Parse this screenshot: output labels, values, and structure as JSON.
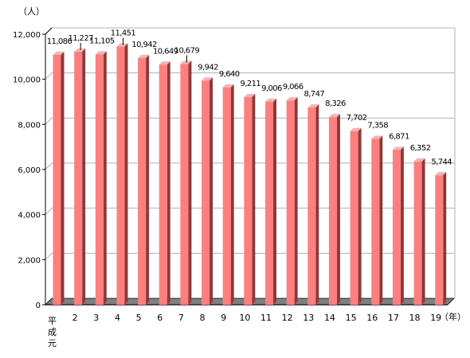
{
  "chart_data": {
    "type": "bar",
    "y_unit_label": "（人）",
    "x_unit_label": "（年）",
    "categories": [
      "平成元",
      "2",
      "3",
      "4",
      "5",
      "6",
      "7",
      "8",
      "9",
      "10",
      "11",
      "12",
      "13",
      "14",
      "15",
      "16",
      "17",
      "18",
      "19"
    ],
    "values": [
      11086,
      11227,
      11105,
      11451,
      10942,
      10649,
      10679,
      9942,
      9640,
      9211,
      9006,
      9066,
      8747,
      8326,
      7702,
      7358,
      6871,
      6352,
      5744
    ],
    "value_labels": [
      "11,086",
      "11,227",
      "11,105",
      "11,451",
      "10,942",
      "10,649",
      "10,679",
      "9,942",
      "9,640",
      "9,211",
      "9,006",
      "9,066",
      "8,747",
      "8,326",
      "7,702",
      "7,358",
      "6,871",
      "6,352",
      "5,744"
    ],
    "y_ticks": [
      0,
      2000,
      4000,
      6000,
      8000,
      10000,
      12000
    ],
    "y_tick_labels": [
      "0",
      "2,000",
      "4,000",
      "6,000",
      "8,000",
      "10,000",
      "12,000"
    ],
    "ylim": [
      0,
      12000
    ],
    "grid": true,
    "style": "3d",
    "colors": {
      "bar_front": "#ff7f7f",
      "bar_side": "#8b3a3a",
      "bar_top": "#ffb0b0",
      "floor": "#808080",
      "floor_front": "#222222",
      "grid": "#b0b0b0",
      "axis": "#000000"
    }
  }
}
